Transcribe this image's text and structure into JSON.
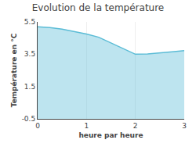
{
  "chart_data": {
    "type": "area",
    "title": "Evolution de la température",
    "xlabel": "heure par heure",
    "ylabel": "Température en °C",
    "x": [
      0,
      0.25,
      0.5,
      0.75,
      1.0,
      1.25,
      1.5,
      1.75,
      2.0,
      2.25,
      2.5,
      2.75,
      3.0
    ],
    "values": [
      5.2,
      5.15,
      5.05,
      4.9,
      4.75,
      4.55,
      4.2,
      3.85,
      3.5,
      3.52,
      3.57,
      3.65,
      3.72
    ],
    "color": "#5bbcd6",
    "xlim": [
      0,
      3
    ],
    "ylim": [
      -0.5,
      5.5
    ],
    "xticks": [
      0,
      1,
      2,
      3
    ],
    "yticks": [
      -0.5,
      1.5,
      3.5,
      5.5
    ],
    "grid": "x"
  }
}
